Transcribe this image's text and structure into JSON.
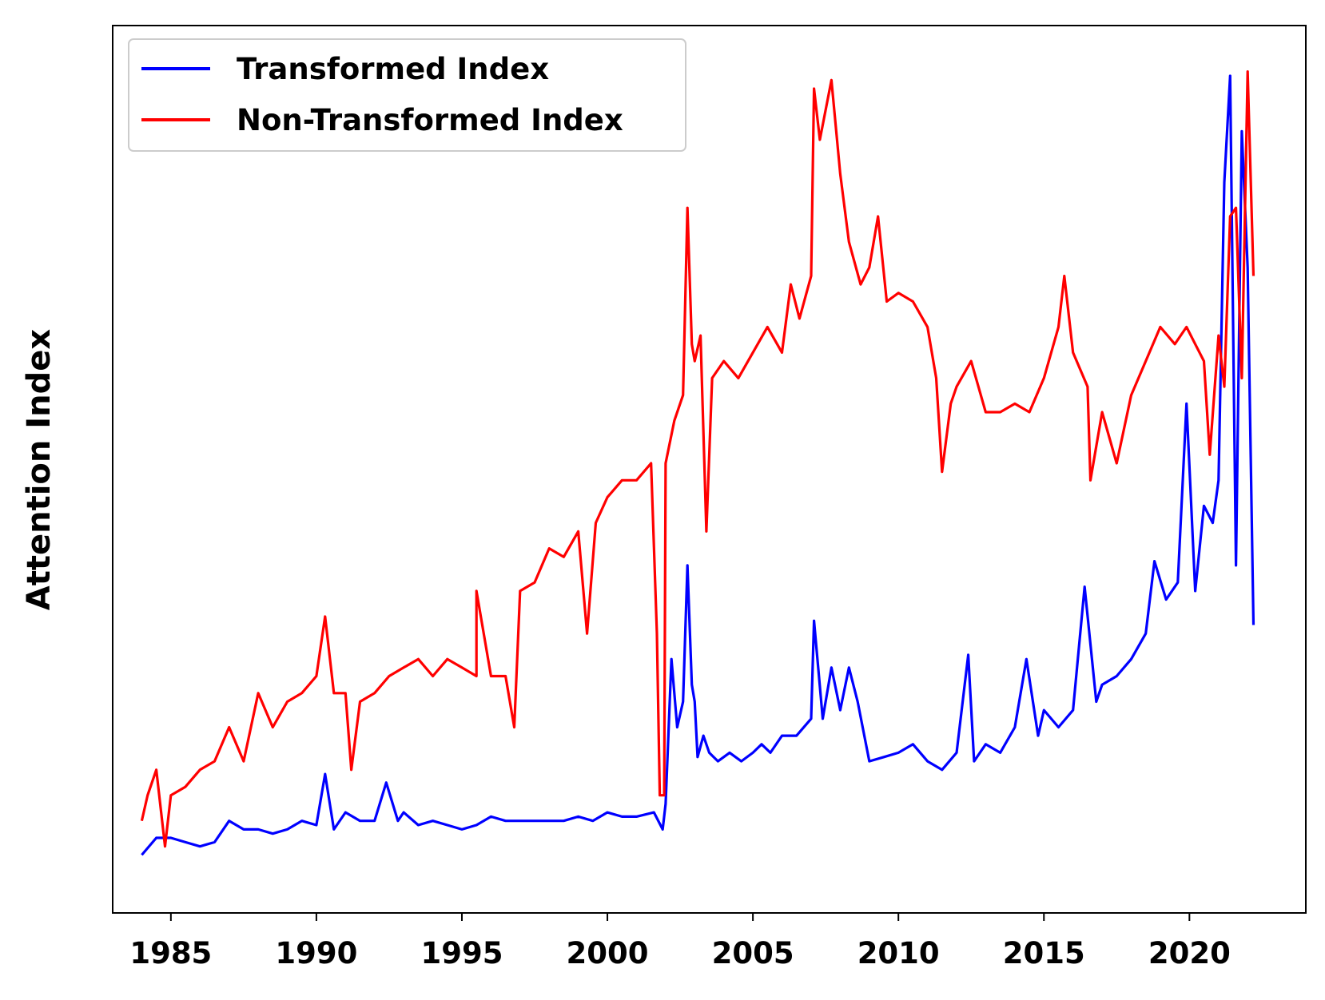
{
  "chart_data": {
    "type": "line",
    "title": "",
    "xlabel": "",
    "ylabel": "Attention Index",
    "xlim": [
      1983.0,
      2024.0
    ],
    "ylim": [
      0,
      100
    ],
    "x_ticks": [
      1985,
      1990,
      1995,
      2000,
      2005,
      2010,
      2015,
      2020
    ],
    "y_ticks_shown": false,
    "grid": false,
    "legend_position": "upper left",
    "series": [
      {
        "name": "Transformed Index",
        "color": "#0000ff",
        "points": [
          [
            1984.0,
            4
          ],
          [
            1984.5,
            6
          ],
          [
            1985.0,
            6
          ],
          [
            1985.5,
            5.5
          ],
          [
            1986.0,
            5
          ],
          [
            1986.5,
            5.5
          ],
          [
            1987.0,
            8
          ],
          [
            1987.5,
            7
          ],
          [
            1988.0,
            7
          ],
          [
            1988.5,
            6.5
          ],
          [
            1989.0,
            7
          ],
          [
            1989.5,
            8
          ],
          [
            1990.0,
            7.5
          ],
          [
            1990.3,
            13.5
          ],
          [
            1990.6,
            7
          ],
          [
            1991.0,
            9
          ],
          [
            1991.5,
            8
          ],
          [
            1992.0,
            8
          ],
          [
            1992.4,
            12.5
          ],
          [
            1992.8,
            8
          ],
          [
            1993.0,
            9
          ],
          [
            1993.5,
            7.5
          ],
          [
            1994.0,
            8
          ],
          [
            1994.5,
            7.5
          ],
          [
            1995.0,
            7
          ],
          [
            1995.5,
            7.5
          ],
          [
            1996.0,
            8.5
          ],
          [
            1996.5,
            8
          ],
          [
            1997.0,
            8
          ],
          [
            1997.5,
            8
          ],
          [
            1998.0,
            8
          ],
          [
            1998.5,
            8
          ],
          [
            1999.0,
            8.5
          ],
          [
            1999.5,
            8
          ],
          [
            2000.0,
            9
          ],
          [
            2000.5,
            8.5
          ],
          [
            2001.0,
            8.5
          ],
          [
            2001.6,
            9
          ],
          [
            2001.9,
            7
          ],
          [
            2002.0,
            10
          ],
          [
            2002.2,
            27
          ],
          [
            2002.4,
            19
          ],
          [
            2002.6,
            22
          ],
          [
            2002.75,
            38
          ],
          [
            2002.9,
            24
          ],
          [
            2003.0,
            22
          ],
          [
            2003.1,
            15.5
          ],
          [
            2003.3,
            18
          ],
          [
            2003.5,
            16
          ],
          [
            2003.8,
            15
          ],
          [
            2004.2,
            16
          ],
          [
            2004.6,
            15
          ],
          [
            2005.0,
            16
          ],
          [
            2005.3,
            17
          ],
          [
            2005.6,
            16
          ],
          [
            2006.0,
            18
          ],
          [
            2006.5,
            18
          ],
          [
            2007.0,
            20
          ],
          [
            2007.1,
            31.5
          ],
          [
            2007.4,
            20
          ],
          [
            2007.7,
            26
          ],
          [
            2008.0,
            21
          ],
          [
            2008.3,
            26
          ],
          [
            2008.6,
            22
          ],
          [
            2009.0,
            15
          ],
          [
            2009.5,
            15.5
          ],
          [
            2010.0,
            16
          ],
          [
            2010.5,
            17
          ],
          [
            2011.0,
            15
          ],
          [
            2011.5,
            14
          ],
          [
            2012.0,
            16
          ],
          [
            2012.4,
            27.5
          ],
          [
            2012.6,
            15
          ],
          [
            2013.0,
            17
          ],
          [
            2013.5,
            16
          ],
          [
            2014.0,
            19
          ],
          [
            2014.4,
            27
          ],
          [
            2014.8,
            18
          ],
          [
            2015.0,
            21
          ],
          [
            2015.5,
            19
          ],
          [
            2016.0,
            21
          ],
          [
            2016.4,
            35.5
          ],
          [
            2016.8,
            22
          ],
          [
            2017.0,
            24
          ],
          [
            2017.5,
            25
          ],
          [
            2018.0,
            27
          ],
          [
            2018.5,
            30
          ],
          [
            2018.8,
            38.5
          ],
          [
            2019.2,
            34
          ],
          [
            2019.6,
            36
          ],
          [
            2019.9,
            57
          ],
          [
            2020.2,
            35
          ],
          [
            2020.5,
            45
          ],
          [
            2020.8,
            43
          ],
          [
            2021.0,
            48
          ],
          [
            2021.2,
            83
          ],
          [
            2021.4,
            95.5
          ],
          [
            2021.6,
            38
          ],
          [
            2021.8,
            89
          ],
          [
            2022.0,
            73
          ],
          [
            2022.2,
            31
          ]
        ]
      },
      {
        "name": "Non-Transformed Index",
        "color": "#ff0000",
        "points": [
          [
            1984.0,
            8
          ],
          [
            1984.2,
            11
          ],
          [
            1984.5,
            14
          ],
          [
            1984.8,
            5
          ],
          [
            1985.0,
            11
          ],
          [
            1985.5,
            12
          ],
          [
            1986.0,
            14
          ],
          [
            1986.5,
            15
          ],
          [
            1987.0,
            19
          ],
          [
            1987.5,
            15
          ],
          [
            1988.0,
            23
          ],
          [
            1988.5,
            19
          ],
          [
            1989.0,
            22
          ],
          [
            1989.5,
            23
          ],
          [
            1990.0,
            25
          ],
          [
            1990.3,
            32
          ],
          [
            1990.6,
            23
          ],
          [
            1991.0,
            23
          ],
          [
            1991.2,
            14
          ],
          [
            1991.5,
            22
          ],
          [
            1992.0,
            23
          ],
          [
            1992.5,
            25
          ],
          [
            1993.0,
            26
          ],
          [
            1993.5,
            27
          ],
          [
            1994.0,
            25
          ],
          [
            1994.5,
            27
          ],
          [
            1995.0,
            26
          ],
          [
            1995.5,
            25
          ],
          [
            1995.5,
            35
          ],
          [
            1996.0,
            25
          ],
          [
            1996.5,
            25
          ],
          [
            1996.8,
            19
          ],
          [
            1997.0,
            35
          ],
          [
            1997.5,
            36
          ],
          [
            1998.0,
            40
          ],
          [
            1998.5,
            39
          ],
          [
            1999.0,
            42
          ],
          [
            1999.3,
            30
          ],
          [
            1999.6,
            43
          ],
          [
            2000.0,
            46
          ],
          [
            2000.5,
            48
          ],
          [
            2001.0,
            48
          ],
          [
            2001.5,
            50
          ],
          [
            2001.7,
            30
          ],
          [
            2001.8,
            11
          ],
          [
            2001.95,
            11
          ],
          [
            2002.0,
            50
          ],
          [
            2002.3,
            55
          ],
          [
            2002.6,
            58
          ],
          [
            2002.75,
            80
          ],
          [
            2002.9,
            64
          ],
          [
            2003.0,
            62
          ],
          [
            2003.2,
            65
          ],
          [
            2003.4,
            42
          ],
          [
            2003.6,
            60
          ],
          [
            2004.0,
            62
          ],
          [
            2004.5,
            60
          ],
          [
            2005.0,
            63
          ],
          [
            2005.5,
            66
          ],
          [
            2006.0,
            63
          ],
          [
            2006.3,
            71
          ],
          [
            2006.6,
            67
          ],
          [
            2007.0,
            72
          ],
          [
            2007.1,
            94
          ],
          [
            2007.3,
            88
          ],
          [
            2007.7,
            95
          ],
          [
            2008.0,
            84
          ],
          [
            2008.3,
            76
          ],
          [
            2008.7,
            71
          ],
          [
            2009.0,
            73
          ],
          [
            2009.3,
            79
          ],
          [
            2009.6,
            69
          ],
          [
            2010.0,
            70
          ],
          [
            2010.5,
            69
          ],
          [
            2011.0,
            66
          ],
          [
            2011.3,
            60
          ],
          [
            2011.5,
            49
          ],
          [
            2011.8,
            57
          ],
          [
            2012.0,
            59
          ],
          [
            2012.5,
            62
          ],
          [
            2013.0,
            56
          ],
          [
            2013.5,
            56
          ],
          [
            2014.0,
            57
          ],
          [
            2014.5,
            56
          ],
          [
            2015.0,
            60
          ],
          [
            2015.5,
            66
          ],
          [
            2015.7,
            72
          ],
          [
            2016.0,
            63
          ],
          [
            2016.5,
            59
          ],
          [
            2016.6,
            48
          ],
          [
            2017.0,
            56
          ],
          [
            2017.5,
            50
          ],
          [
            2018.0,
            58
          ],
          [
            2018.5,
            62
          ],
          [
            2019.0,
            66
          ],
          [
            2019.5,
            64
          ],
          [
            2019.9,
            66
          ],
          [
            2020.2,
            64
          ],
          [
            2020.5,
            62
          ],
          [
            2020.7,
            51
          ],
          [
            2021.0,
            65
          ],
          [
            2021.2,
            59
          ],
          [
            2021.4,
            79
          ],
          [
            2021.6,
            80
          ],
          [
            2021.8,
            60
          ],
          [
            2022.0,
            96
          ],
          [
            2022.2,
            72
          ]
        ]
      }
    ]
  }
}
